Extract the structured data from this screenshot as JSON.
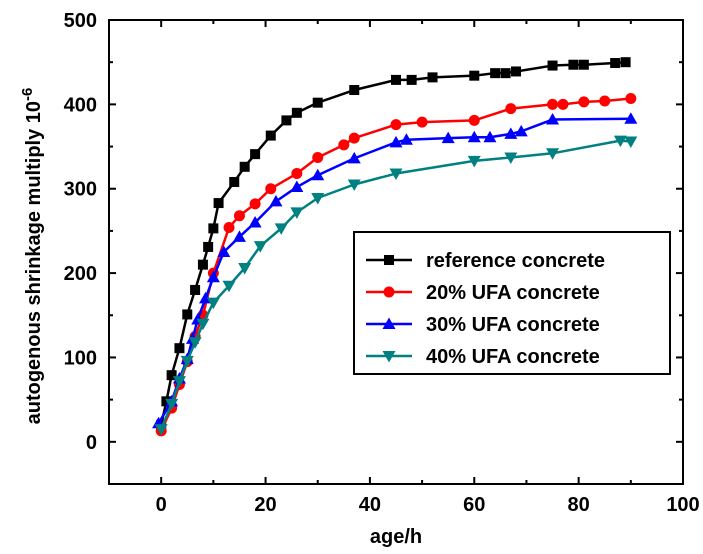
{
  "chart_data": {
    "type": "line",
    "xlabel": "age/h",
    "ylabel": "autogenous shrinkage multiply 10",
    "ylabel_superscript": "-6",
    "xlim": [
      -10,
      100
    ],
    "ylim": [
      -50,
      500
    ],
    "x_ticks": [
      0,
      20,
      40,
      60,
      80,
      100
    ],
    "y_ticks": [
      0,
      100,
      200,
      300,
      400,
      500
    ],
    "grid": false,
    "legend_position": "center-right",
    "series": [
      {
        "name": "reference concrete",
        "color": "#000000",
        "marker": "square",
        "points": [
          [
            0,
            20
          ],
          [
            1,
            48
          ],
          [
            2,
            79
          ],
          [
            3.5,
            111
          ],
          [
            5,
            151
          ],
          [
            6.5,
            180
          ],
          [
            8,
            210
          ],
          [
            9,
            231
          ],
          [
            10,
            253
          ],
          [
            11,
            283
          ],
          [
            14,
            308
          ],
          [
            16,
            326
          ],
          [
            18,
            341
          ],
          [
            21,
            363
          ],
          [
            24,
            381
          ],
          [
            26,
            390
          ],
          [
            30,
            402
          ],
          [
            37,
            417
          ],
          [
            45,
            429
          ],
          [
            48,
            429
          ],
          [
            52,
            432
          ],
          [
            60,
            434
          ],
          [
            64,
            437
          ],
          [
            66,
            437
          ],
          [
            68,
            439
          ],
          [
            75,
            446
          ],
          [
            79,
            447
          ],
          [
            81,
            447
          ],
          [
            87,
            449
          ],
          [
            89,
            450
          ]
        ]
      },
      {
        "name": "20% UFA concrete",
        "color": "#ff0000",
        "marker": "circle",
        "points": [
          [
            0,
            13
          ],
          [
            2,
            40
          ],
          [
            3.5,
            68
          ],
          [
            5,
            95
          ],
          [
            6.5,
            125
          ],
          [
            8,
            150
          ],
          [
            10,
            200
          ],
          [
            13,
            254
          ],
          [
            15,
            268
          ],
          [
            18,
            282
          ],
          [
            21,
            300
          ],
          [
            26,
            318
          ],
          [
            30,
            337
          ],
          [
            35,
            352
          ],
          [
            37,
            360
          ],
          [
            45,
            376
          ],
          [
            50,
            379
          ],
          [
            60,
            381
          ],
          [
            67,
            395
          ],
          [
            75,
            400
          ],
          [
            77,
            400
          ],
          [
            81,
            403
          ],
          [
            85,
            404
          ],
          [
            90,
            407
          ]
        ]
      },
      {
        "name": "30% UFA concrete",
        "color": "#0000ff",
        "marker": "triangle-up",
        "points": [
          [
            -0.5,
            22
          ],
          [
            2,
            48
          ],
          [
            3.5,
            75
          ],
          [
            5,
            98
          ],
          [
            6,
            122
          ],
          [
            7,
            145
          ],
          [
            8.5,
            170
          ],
          [
            10,
            195
          ],
          [
            12,
            225
          ],
          [
            15,
            243
          ],
          [
            18,
            260
          ],
          [
            22,
            285
          ],
          [
            26,
            302
          ],
          [
            30,
            316
          ],
          [
            37,
            336
          ],
          [
            45,
            355
          ],
          [
            47,
            358
          ],
          [
            55,
            360
          ],
          [
            60,
            361
          ],
          [
            63,
            361
          ],
          [
            67,
            365
          ],
          [
            69,
            368
          ],
          [
            75,
            382
          ],
          [
            90,
            383
          ]
        ]
      },
      {
        "name": "40% UFA concrete",
        "color": "#008080",
        "marker": "triangle-down",
        "points": [
          [
            0,
            15
          ],
          [
            2,
            45
          ],
          [
            3.5,
            72
          ],
          [
            5,
            96
          ],
          [
            6.5,
            118
          ],
          [
            8,
            140
          ],
          [
            10,
            165
          ],
          [
            13,
            185
          ],
          [
            16,
            206
          ],
          [
            19,
            232
          ],
          [
            23,
            253
          ],
          [
            26,
            272
          ],
          [
            30,
            289
          ],
          [
            37,
            305
          ],
          [
            45,
            318
          ],
          [
            60,
            333
          ],
          [
            67,
            337
          ],
          [
            75,
            342
          ],
          [
            88,
            357
          ],
          [
            90,
            356
          ]
        ]
      }
    ]
  }
}
